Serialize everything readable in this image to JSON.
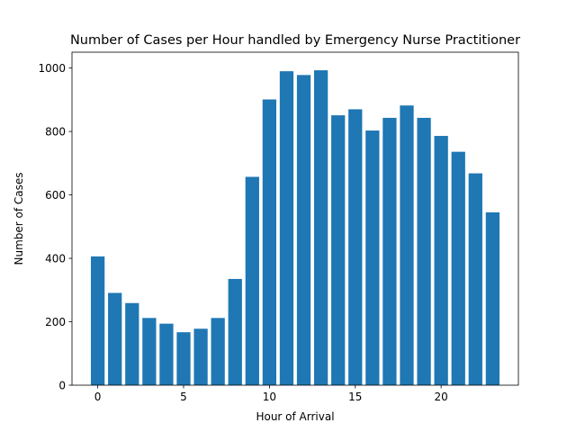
{
  "chart_data": {
    "type": "bar",
    "title": "Number of Cases per Hour handled by Emergency Nurse Practitioner",
    "xlabel": "Hour of Arrival",
    "ylabel": "Number of Cases",
    "x": [
      0,
      1,
      2,
      3,
      4,
      5,
      6,
      7,
      8,
      9,
      10,
      11,
      12,
      13,
      14,
      15,
      16,
      17,
      18,
      19,
      20,
      21,
      22,
      23
    ],
    "values": [
      406,
      291,
      259,
      212,
      194,
      167,
      178,
      212,
      335,
      657,
      901,
      990,
      978,
      993,
      851,
      870,
      803,
      843,
      882,
      843,
      786,
      736,
      668,
      545
    ],
    "xlim": [
      -1.5,
      24.5
    ],
    "ylim": [
      0,
      1050
    ],
    "xticks": [
      0,
      5,
      10,
      15,
      20
    ],
    "yticks": [
      0,
      200,
      400,
      600,
      800,
      1000
    ],
    "grid": false,
    "legend": "none",
    "bar_color": "#1f77b4"
  }
}
